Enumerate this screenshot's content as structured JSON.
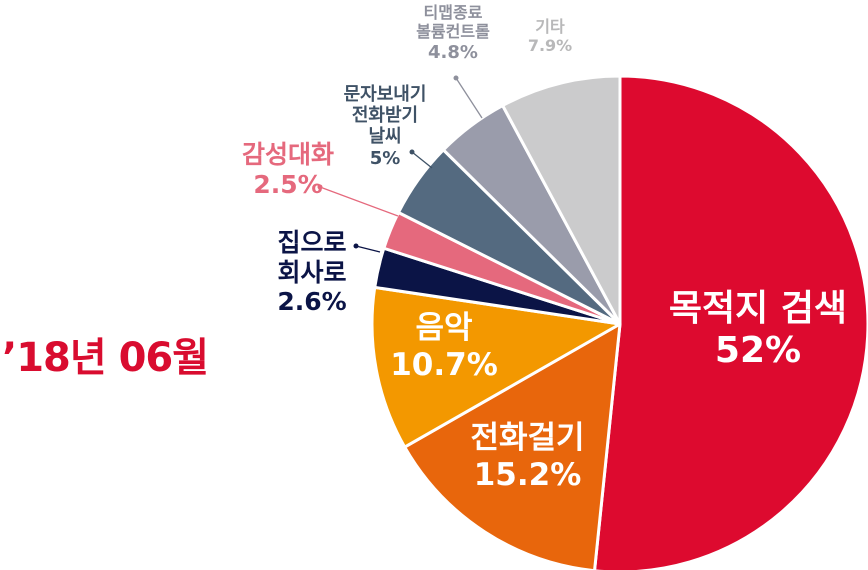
{
  "period_label": "’18년 06월",
  "chart_data": {
    "type": "pie",
    "title": "",
    "start_angle_deg": 0,
    "direction": "clockwise",
    "slices": [
      {
        "lines": [
          "목적지 검색"
        ],
        "value": 52,
        "value_label": "52%",
        "color": "#dd0a2f",
        "label_color": "#ffffff"
      },
      {
        "lines": [
          "전화걸기"
        ],
        "value": 15.2,
        "value_label": "15.2%",
        "color": "#e8660c",
        "label_color": "#ffffff"
      },
      {
        "lines": [
          "음악"
        ],
        "value": 10.7,
        "value_label": "10.7%",
        "color": "#f39800",
        "label_color": "#ffffff"
      },
      {
        "lines": [
          "집으로",
          "회사로"
        ],
        "value": 2.6,
        "value_label": "2.6%",
        "color": "#0b1446",
        "label_color": "#0b1446"
      },
      {
        "lines": [
          "감성대화"
        ],
        "value": 2.5,
        "value_label": "2.5%",
        "color": "#e5697d",
        "label_color": "#e5697d"
      },
      {
        "lines": [
          "문자보내기",
          "전화받기",
          "날씨"
        ],
        "value": 5,
        "value_label": "5%",
        "color": "#546a80",
        "label_color": "#3f5266"
      },
      {
        "lines": [
          "티맵종료",
          "볼륨컨트롤"
        ],
        "value": 4.8,
        "value_label": "4.8%",
        "color": "#9a9cab",
        "label_color": "#8e909c"
      },
      {
        "lines": [
          "기타"
        ],
        "value": 7.9,
        "value_label": "7.9%",
        "color": "#cbcbcc",
        "label_color": "#b8b8b9"
      }
    ]
  }
}
